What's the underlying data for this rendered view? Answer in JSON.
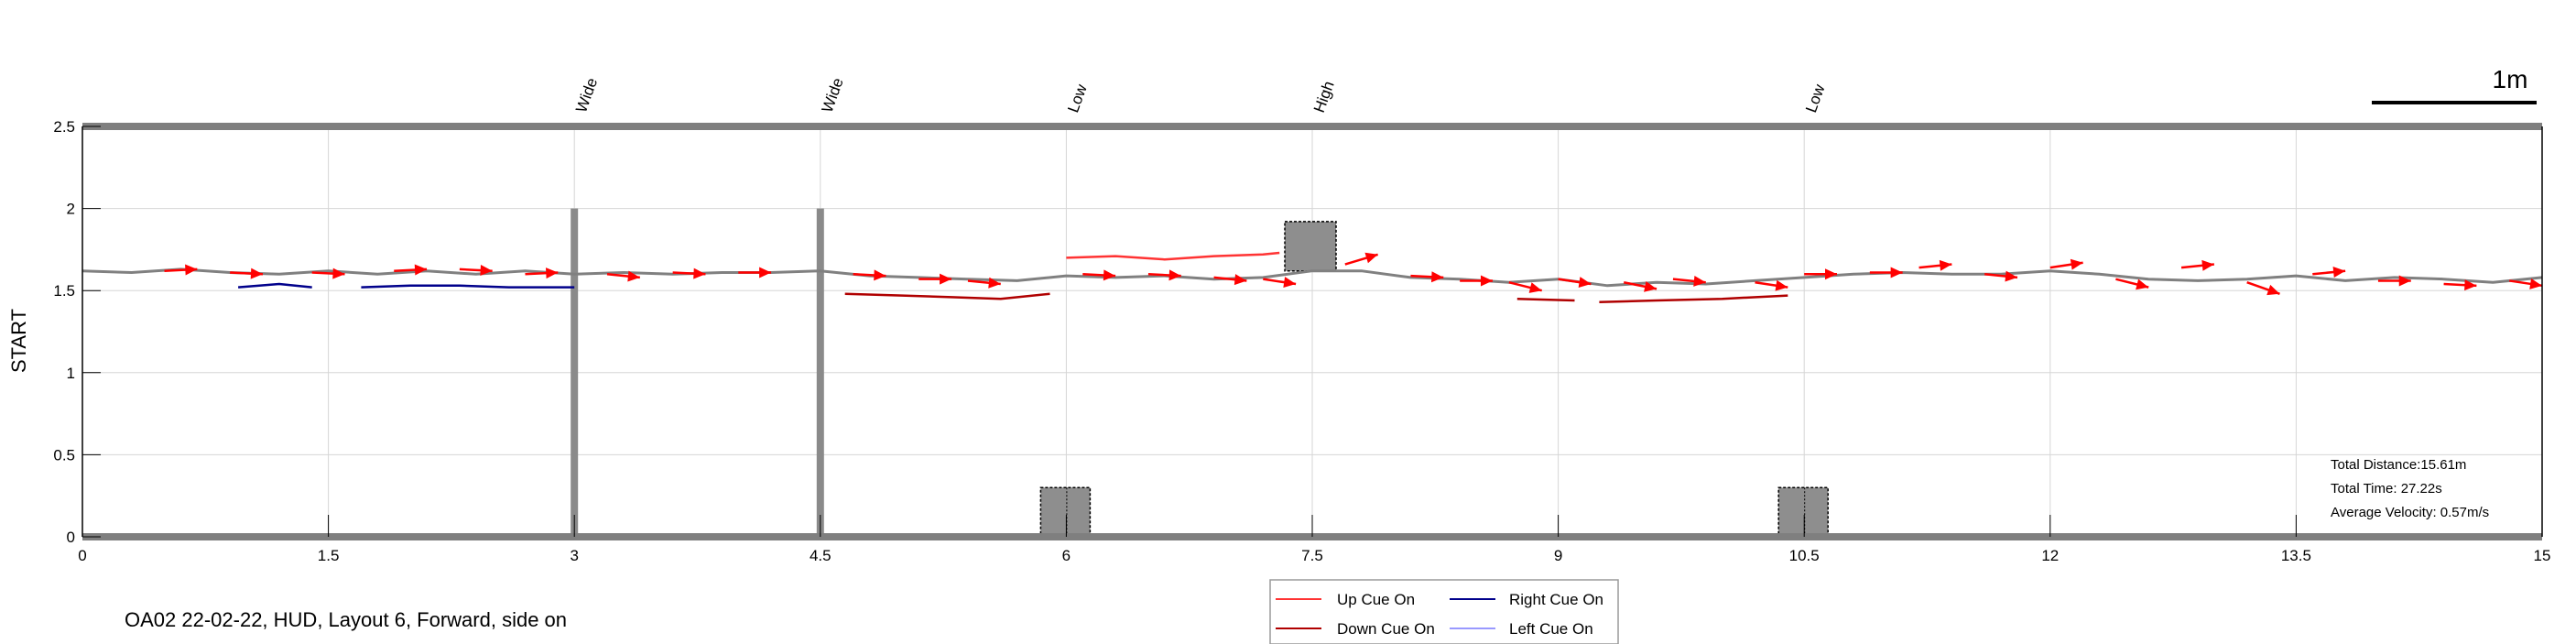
{
  "chart_data": {
    "type": "line",
    "title": "",
    "xlabel": "",
    "ylabel": "START",
    "xlim": [
      0,
      15
    ],
    "ylim": [
      0,
      2.5
    ],
    "x_ticks": [
      "0",
      "1.5",
      "3",
      "4.5",
      "6",
      "7.5",
      "9",
      "10.5",
      "12",
      "13.5",
      "15"
    ],
    "y_ticks": [
      "0",
      "0.5",
      "1",
      "1.5",
      "2",
      "2.5"
    ],
    "grid": true,
    "scale_bar_label": "1m",
    "caption": "OA02 22-02-22, HUD, Layout 6, Forward, side on",
    "stats": [
      "Total Distance:15.61m",
      "Total Time: 27.22s",
      "Average Velocity: 0.57m/s"
    ],
    "legend": {
      "placement": "bottom-center",
      "entries": [
        {
          "name": "Up Cue On",
          "color": "#ff3333"
        },
        {
          "name": "Right Cue On",
          "color": "#00008b"
        },
        {
          "name": "Down Cue On",
          "color": "#b00000"
        },
        {
          "name": "Left Cue On",
          "color": "#9999ff"
        }
      ]
    },
    "obstacles": [
      {
        "label": "Wide",
        "x": 3.0,
        "kind": "wall"
      },
      {
        "label": "Wide",
        "x": 4.5,
        "kind": "wall"
      },
      {
        "label": "Low",
        "x": 6.0,
        "kind": "low",
        "y_range": [
          0,
          0.3
        ]
      },
      {
        "label": "High",
        "x": 7.5,
        "kind": "high",
        "y_range": [
          1.62,
          1.92
        ]
      },
      {
        "label": "Low",
        "x": 10.5,
        "kind": "low",
        "y_range": [
          0,
          0.3
        ]
      }
    ],
    "series": [
      {
        "color": "#808080",
        "points": [
          [
            0,
            1.62
          ],
          [
            0.3,
            1.61
          ],
          [
            0.6,
            1.63
          ],
          [
            0.9,
            1.61
          ],
          [
            1.2,
            1.6
          ],
          [
            1.5,
            1.62
          ],
          [
            1.8,
            1.6
          ],
          [
            2.1,
            1.62
          ],
          [
            2.4,
            1.6
          ],
          [
            2.7,
            1.62
          ],
          [
            3.0,
            1.6
          ],
          [
            3.3,
            1.61
          ],
          [
            3.6,
            1.6
          ],
          [
            3.9,
            1.61
          ],
          [
            4.2,
            1.61
          ],
          [
            4.5,
            1.62
          ],
          [
            4.8,
            1.59
          ],
          [
            5.1,
            1.58
          ],
          [
            5.4,
            1.57
          ],
          [
            5.7,
            1.56
          ],
          [
            6.0,
            1.59
          ],
          [
            6.3,
            1.58
          ],
          [
            6.6,
            1.59
          ],
          [
            6.9,
            1.57
          ],
          [
            7.2,
            1.58
          ],
          [
            7.5,
            1.62
          ],
          [
            7.8,
            1.62
          ],
          [
            8.1,
            1.58
          ],
          [
            8.4,
            1.57
          ],
          [
            8.7,
            1.55
          ],
          [
            9.0,
            1.57
          ],
          [
            9.3,
            1.53
          ],
          [
            9.6,
            1.55
          ],
          [
            9.9,
            1.54
          ],
          [
            10.2,
            1.56
          ],
          [
            10.5,
            1.58
          ],
          [
            10.8,
            1.6
          ],
          [
            11.1,
            1.61
          ],
          [
            11.4,
            1.6
          ],
          [
            11.7,
            1.6
          ],
          [
            12.0,
            1.62
          ],
          [
            12.3,
            1.6
          ],
          [
            12.6,
            1.57
          ],
          [
            12.9,
            1.56
          ],
          [
            13.2,
            1.57
          ],
          [
            13.5,
            1.59
          ],
          [
            13.8,
            1.56
          ],
          [
            14.1,
            1.58
          ],
          [
            14.4,
            1.57
          ],
          [
            14.7,
            1.55
          ],
          [
            15.0,
            1.58
          ]
        ]
      },
      {
        "name": "Up Cue On",
        "color": "#ff3333",
        "points": [
          [
            6.0,
            1.7
          ],
          [
            6.3,
            1.71
          ],
          [
            6.6,
            1.69
          ],
          [
            6.9,
            1.71
          ],
          [
            7.2,
            1.72
          ],
          [
            7.3,
            1.73
          ]
        ]
      },
      {
        "name": "Right Cue On",
        "color": "#00008b",
        "points": [
          [
            0.95,
            1.52
          ],
          [
            1.2,
            1.54
          ],
          [
            1.4,
            1.52
          ]
        ]
      },
      {
        "name": "Right Cue On",
        "color": "#00008b",
        "points": [
          [
            1.7,
            1.52
          ],
          [
            2.0,
            1.53
          ],
          [
            2.3,
            1.53
          ],
          [
            2.6,
            1.52
          ],
          [
            3.0,
            1.52
          ]
        ]
      },
      {
        "name": "Down Cue On",
        "color": "#b00000",
        "points": [
          [
            4.65,
            1.48
          ],
          [
            5.0,
            1.47
          ],
          [
            5.3,
            1.46
          ],
          [
            5.6,
            1.45
          ],
          [
            5.9,
            1.48
          ]
        ]
      },
      {
        "name": "Down Cue On",
        "color": "#b00000",
        "points": [
          [
            8.75,
            1.45
          ],
          [
            9.1,
            1.44
          ]
        ]
      },
      {
        "name": "Down Cue On",
        "color": "#b00000",
        "points": [
          [
            9.25,
            1.43
          ],
          [
            9.6,
            1.44
          ],
          [
            10.0,
            1.45
          ],
          [
            10.4,
            1.47
          ]
        ]
      }
    ],
    "velocity_arrows": [
      [
        0.5,
        1.62,
        0.7,
        1.63
      ],
      [
        0.9,
        1.61,
        1.1,
        1.6
      ],
      [
        1.4,
        1.61,
        1.6,
        1.6
      ],
      [
        1.9,
        1.62,
        2.1,
        1.63
      ],
      [
        2.3,
        1.63,
        2.5,
        1.62
      ],
      [
        2.7,
        1.6,
        2.9,
        1.61
      ],
      [
        3.2,
        1.6,
        3.4,
        1.58
      ],
      [
        3.6,
        1.61,
        3.8,
        1.6
      ],
      [
        4.0,
        1.61,
        4.2,
        1.61
      ],
      [
        4.7,
        1.6,
        4.9,
        1.59
      ],
      [
        5.1,
        1.57,
        5.3,
        1.57
      ],
      [
        5.4,
        1.56,
        5.6,
        1.54
      ],
      [
        6.1,
        1.6,
        6.3,
        1.59
      ],
      [
        6.5,
        1.6,
        6.7,
        1.59
      ],
      [
        6.9,
        1.58,
        7.1,
        1.56
      ],
      [
        7.2,
        1.57,
        7.4,
        1.54
      ],
      [
        7.7,
        1.66,
        7.9,
        1.72
      ],
      [
        8.1,
        1.59,
        8.3,
        1.58
      ],
      [
        8.4,
        1.56,
        8.6,
        1.56
      ],
      [
        8.7,
        1.55,
        8.9,
        1.5
      ],
      [
        9.0,
        1.57,
        9.2,
        1.54
      ],
      [
        9.4,
        1.55,
        9.6,
        1.51
      ],
      [
        9.7,
        1.57,
        9.9,
        1.55
      ],
      [
        10.2,
        1.55,
        10.4,
        1.52
      ],
      [
        10.5,
        1.6,
        10.7,
        1.6
      ],
      [
        10.9,
        1.61,
        11.1,
        1.61
      ],
      [
        11.2,
        1.64,
        11.4,
        1.66
      ],
      [
        11.6,
        1.6,
        11.8,
        1.58
      ],
      [
        12.0,
        1.64,
        12.2,
        1.67
      ],
      [
        12.4,
        1.57,
        12.6,
        1.52
      ],
      [
        12.8,
        1.64,
        13.0,
        1.66
      ],
      [
        13.2,
        1.55,
        13.4,
        1.48
      ],
      [
        13.6,
        1.6,
        13.8,
        1.62
      ],
      [
        14.0,
        1.56,
        14.2,
        1.56
      ],
      [
        14.4,
        1.54,
        14.6,
        1.53
      ],
      [
        14.8,
        1.56,
        15.0,
        1.53
      ]
    ]
  }
}
